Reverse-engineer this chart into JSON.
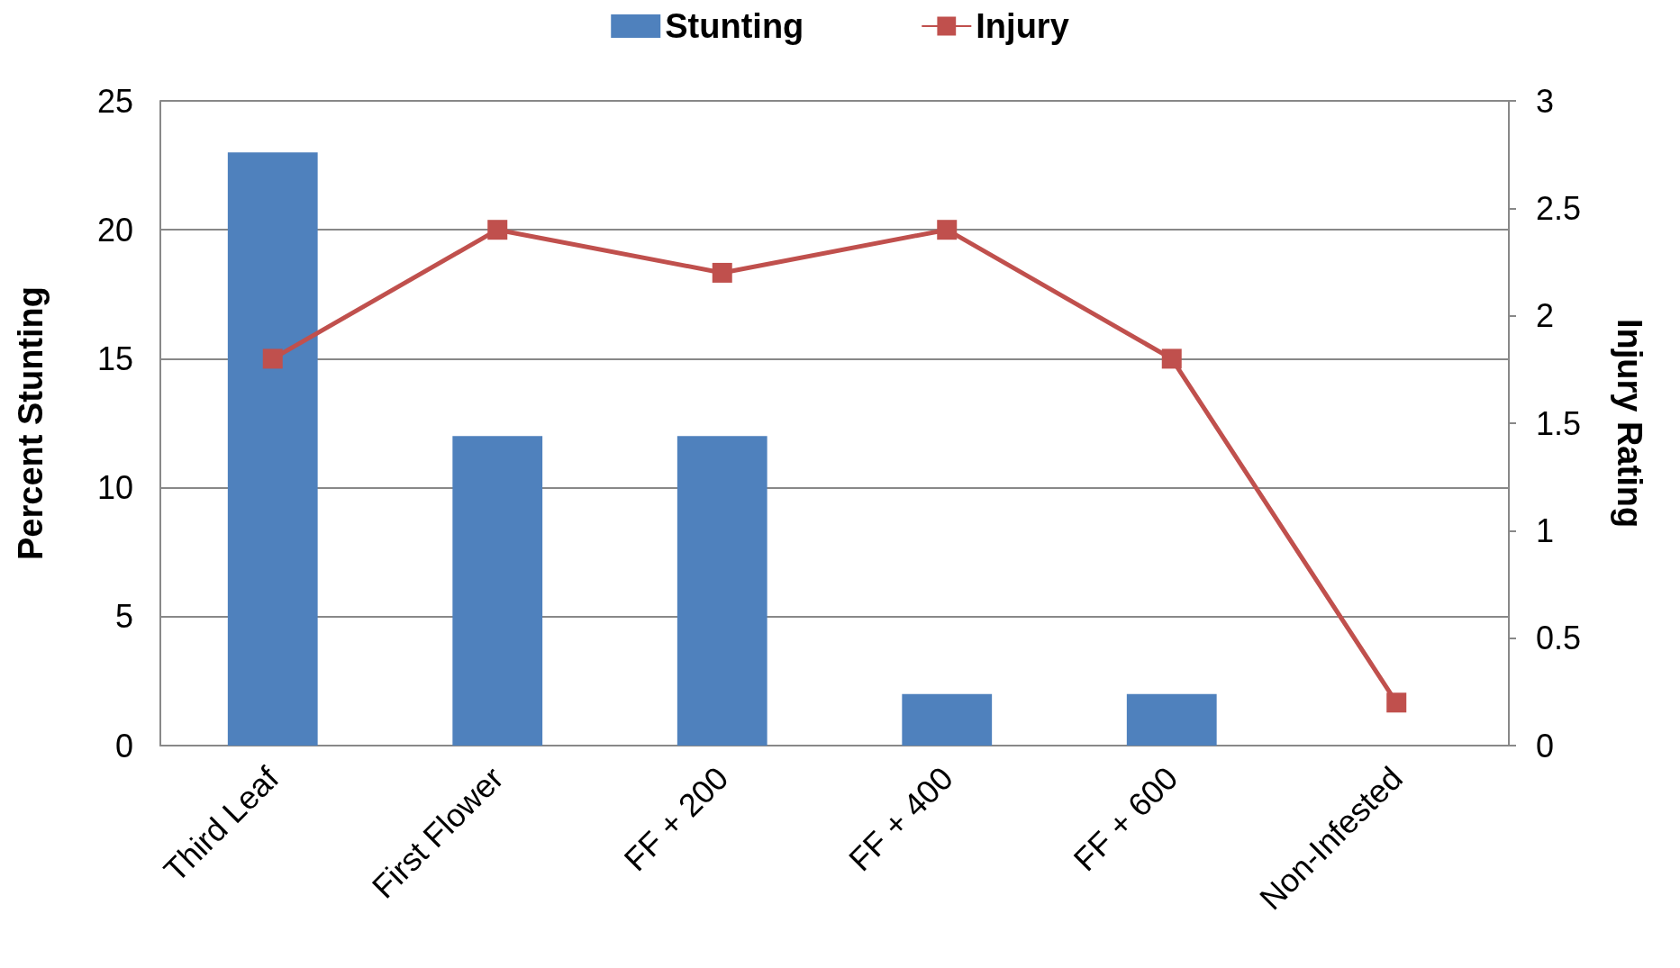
{
  "chart_data": {
    "type": "bar",
    "categories": [
      "Third Leaf",
      "First Flower",
      "FF + 200",
      "FF + 400",
      "FF + 600",
      "Non-Infested"
    ],
    "series": [
      {
        "name": "Stunting",
        "color": "#4f81bd",
        "values": [
          23,
          12,
          12,
          2,
          2,
          0
        ]
      },
      {
        "name": "Injury",
        "type": "line",
        "axis": "y2",
        "color": "#c0504d",
        "values": [
          1.8,
          2.4,
          2.2,
          2.4,
          1.8,
          0.2
        ]
      }
    ],
    "ylabel": "Percent Stunting",
    "y2label": "Injury Rating",
    "ylim": [
      0,
      25
    ],
    "yticks": [
      0,
      5,
      10,
      15,
      20,
      25
    ],
    "y2lim": [
      0,
      3
    ],
    "y2ticks": [
      0,
      0.5,
      1,
      1.5,
      2,
      2.5,
      3
    ],
    "grid": "y",
    "legend": "top",
    "marker": "square",
    "line_style": "solid"
  }
}
